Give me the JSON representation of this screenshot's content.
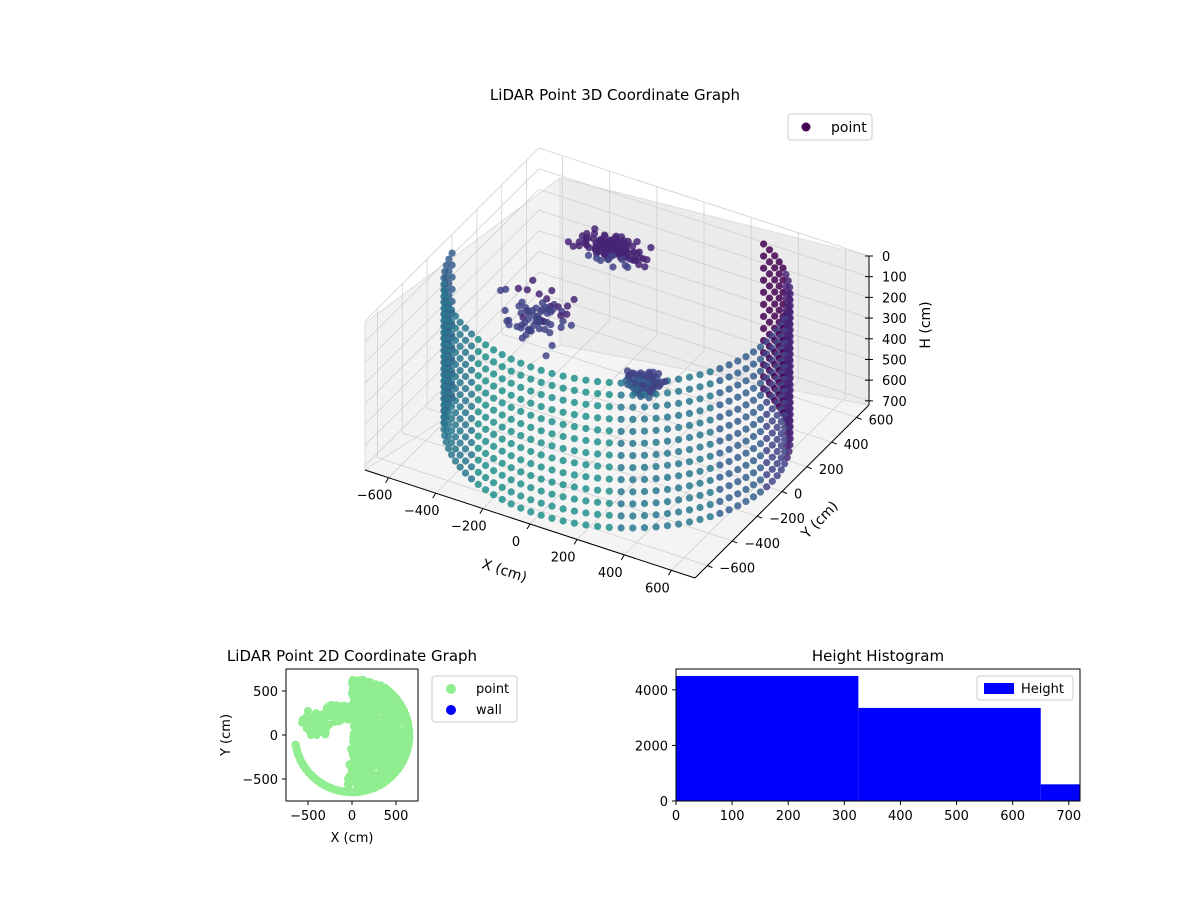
{
  "chart_data": [
    {
      "type": "scatter",
      "title": "LiDAR Point 3D Coordinate Graph",
      "xlabel": "X (cm)",
      "ylabel": "Y (cm)",
      "zlabel": "H (cm)",
      "xlim": [
        -700,
        700
      ],
      "ylim": [
        -700,
        700
      ],
      "zlim": [
        0,
        720
      ],
      "z_axis_inverted": true,
      "xticks": [
        -600,
        -400,
        -200,
        0,
        200,
        400,
        600
      ],
      "yticks": [
        -600,
        -400,
        -200,
        0,
        200,
        400,
        600
      ],
      "zticks": [
        0,
        100,
        200,
        300,
        400,
        500,
        600,
        700
      ],
      "colormap": "viridis",
      "grid": true,
      "legend": {
        "placement": "top-right",
        "entries": [
          "point"
        ]
      },
      "series": [
        {
          "name": "point",
          "color": "#440154",
          "cylinder_wall": {
            "radius": 650,
            "theta_start_deg": -170,
            "theta_end_deg": 60,
            "h_min": 0,
            "h_max": 700,
            "columns": 60,
            "rows": 13
          },
          "clusters": [
            {
              "center": [
                -150,
                250,
                0
              ],
              "spread": [
                180,
                120,
                60
              ],
              "count": 140
            },
            {
              "center": [
                150,
                -50,
                350
              ],
              "spread": [
                120,
                100,
                100
              ],
              "count": 90
            },
            {
              "center": [
                -400,
                100,
                300
              ],
              "spread": [
                200,
                200,
                200
              ],
              "count": 70
            }
          ]
        }
      ]
    },
    {
      "type": "scatter",
      "title": "LiDAR Point 2D Coordinate Graph",
      "xlabel": "X (cm)",
      "ylabel": "Y (cm)",
      "xlim": [
        -750,
        750
      ],
      "ylim": [
        -750,
        750
      ],
      "xticks": [
        -500,
        0,
        500
      ],
      "yticks": [
        -500,
        0,
        500
      ],
      "legend": {
        "placement": "outside-right",
        "entries": [
          "point",
          "wall"
        ]
      },
      "series": [
        {
          "name": "point",
          "color": "#90ee90"
        },
        {
          "name": "wall",
          "color": "#0000ff"
        }
      ]
    },
    {
      "type": "bar",
      "title": "Height Histogram",
      "xlim": [
        0,
        720
      ],
      "ylim": [
        0,
        4750
      ],
      "xticks": [
        0,
        100,
        200,
        300,
        400,
        500,
        600,
        700
      ],
      "yticks": [
        0,
        2000,
        4000
      ],
      "legend": {
        "placement": "top-right",
        "entries": [
          "Height"
        ]
      },
      "bins": [
        [
          0,
          325
        ],
        [
          325,
          650
        ],
        [
          650,
          720
        ]
      ],
      "values": [
        4500,
        3350,
        600
      ],
      "series": [
        {
          "name": "Height",
          "color": "#0000ff"
        }
      ]
    }
  ]
}
